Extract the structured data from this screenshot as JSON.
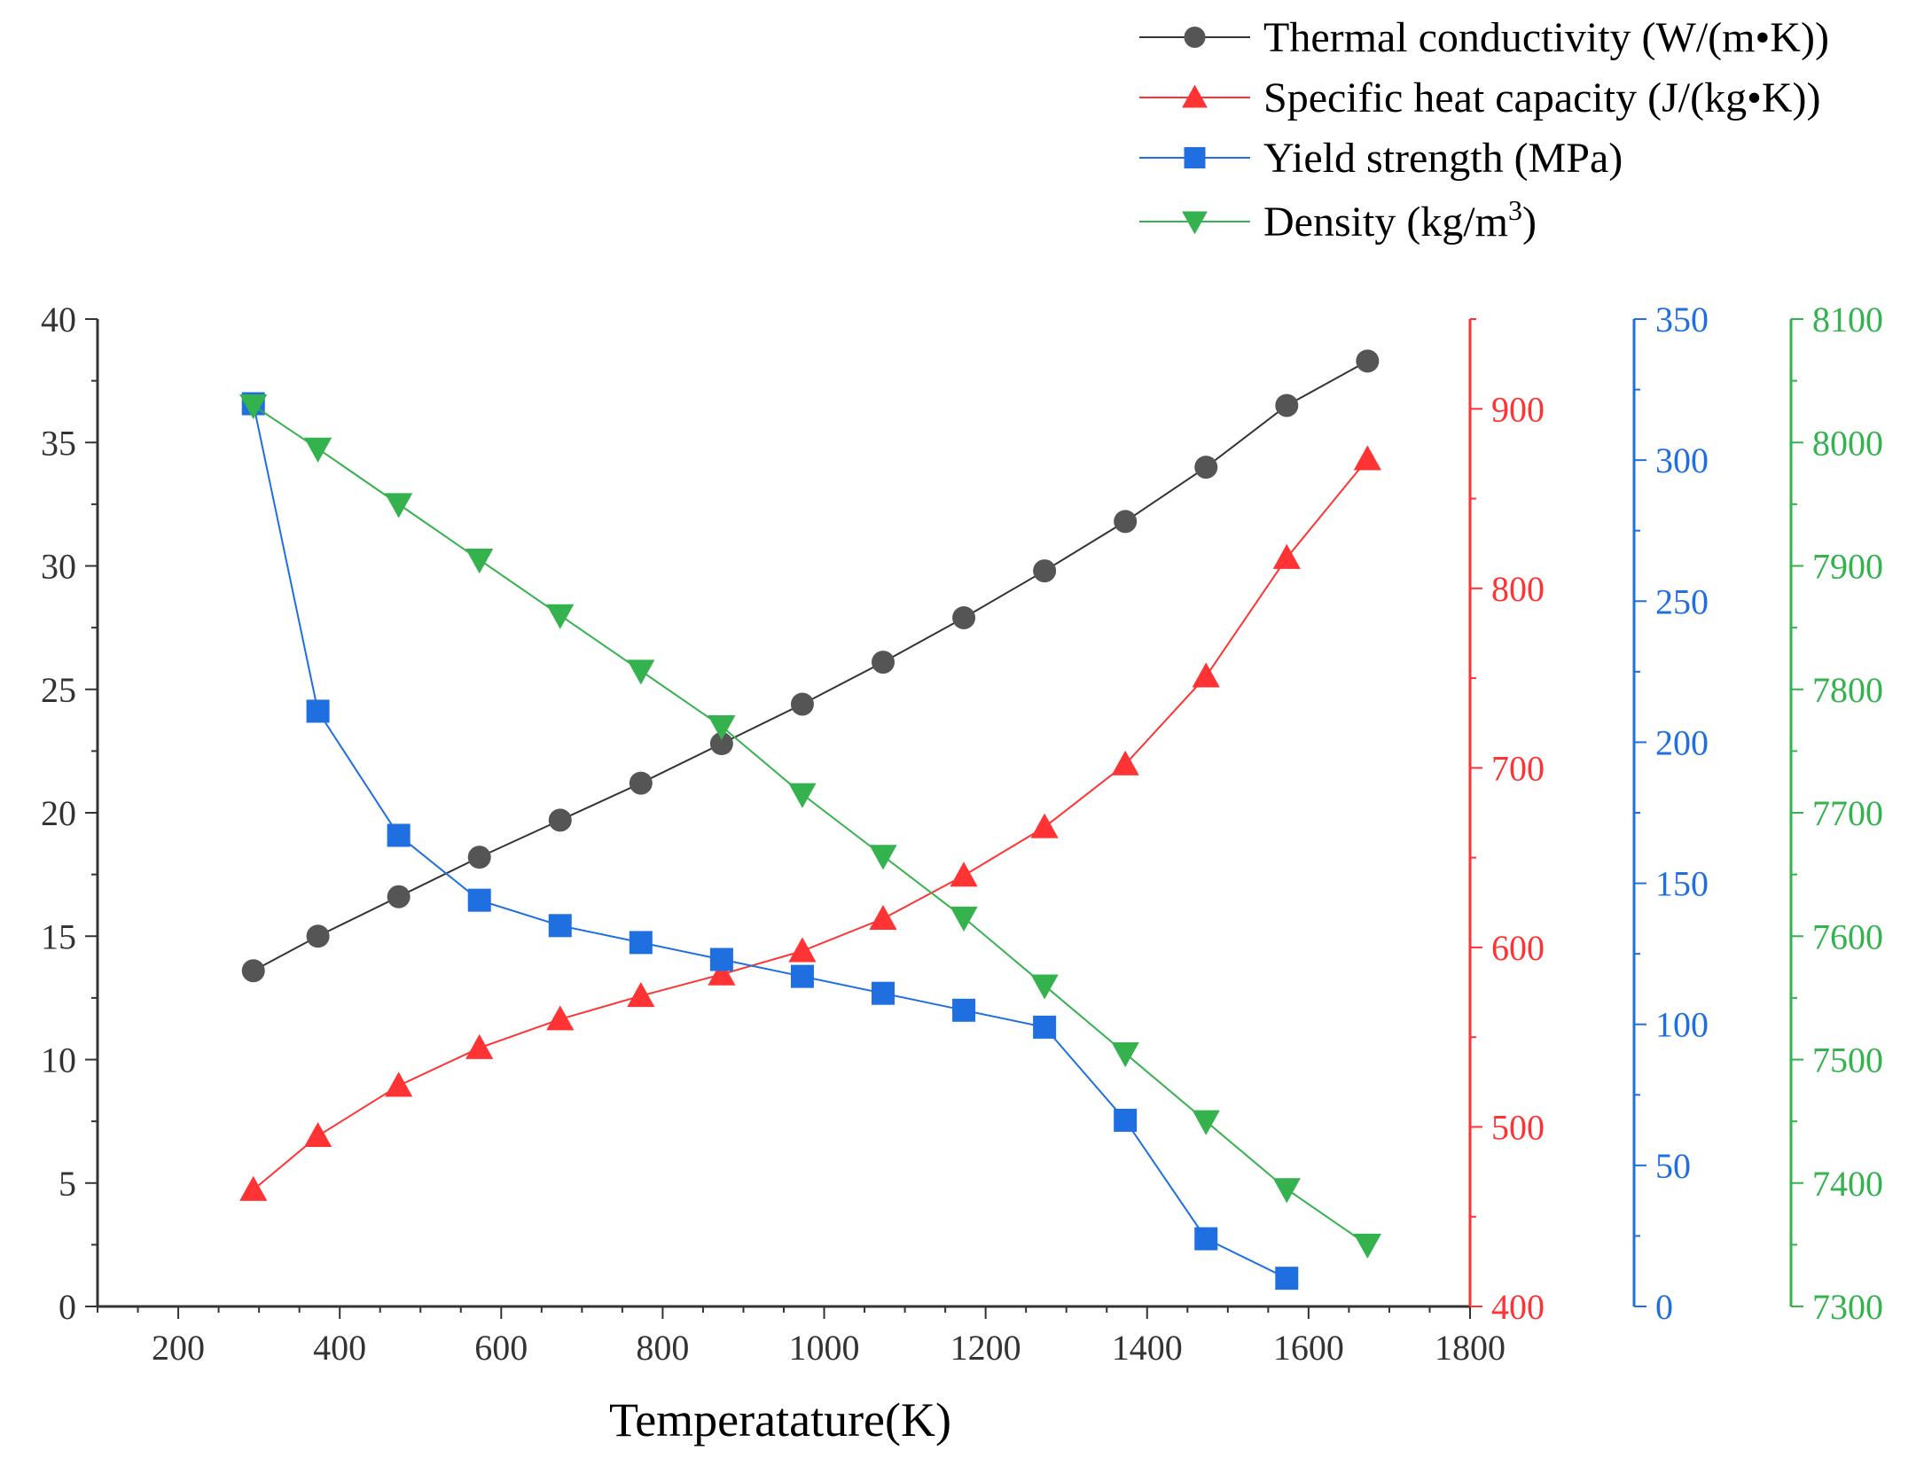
{
  "chart_data": {
    "type": "line",
    "title": "",
    "xlabel": "Temperatature(K)",
    "xlim": [
      100,
      1800
    ],
    "x_ticks": [
      200,
      400,
      600,
      800,
      1000,
      1200,
      1400,
      1600,
      1800
    ],
    "grid": false,
    "legend_position": "top-right",
    "x": [
      293,
      373,
      473,
      573,
      673,
      773,
      873,
      973,
      1073,
      1173,
      1273,
      1373,
      1473,
      1573,
      1673
    ],
    "axes": [
      {
        "id": "y1",
        "side": "left",
        "color": "#333333",
        "ylim": [
          0,
          40
        ],
        "ticks": [
          0,
          5,
          10,
          15,
          20,
          25,
          30,
          35,
          40
        ]
      },
      {
        "id": "y2",
        "side": "right",
        "color": "#ff3333",
        "ylim": [
          400,
          950
        ],
        "ticks": [
          400,
          500,
          600,
          700,
          800,
          900
        ]
      },
      {
        "id": "y3",
        "side": "right",
        "color": "#1f6fe0",
        "ylim": [
          0,
          350
        ],
        "ticks": [
          0,
          50,
          100,
          150,
          200,
          250,
          300,
          350
        ]
      },
      {
        "id": "y4",
        "side": "right",
        "color": "#33b24d",
        "ylim": [
          7300,
          8100
        ],
        "ticks": [
          7300,
          7400,
          7500,
          7600,
          7700,
          7800,
          7900,
          8000,
          8100
        ]
      }
    ],
    "series": [
      {
        "name": "Thermal conductivity (W/(m•K))",
        "axis": "y1",
        "marker": "circle",
        "color": "#555555",
        "line_color": "#333333",
        "x": [
          293,
          373,
          473,
          573,
          673,
          773,
          873,
          973,
          1073,
          1173,
          1273,
          1373,
          1473,
          1573,
          1673
        ],
        "values": [
          13.6,
          15.0,
          16.6,
          18.2,
          19.7,
          21.2,
          22.8,
          24.4,
          26.1,
          27.9,
          29.8,
          31.8,
          34.0,
          36.5,
          38.3
        ]
      },
      {
        "name": "Specific heat capacity (J/(kg•K))",
        "axis": "y2",
        "marker": "triangle-up",
        "color": "#ff3333",
        "line_color": "#ff3333",
        "x": [
          293,
          373,
          473,
          573,
          673,
          773,
          873,
          973,
          1073,
          1173,
          1273,
          1373,
          1473,
          1573,
          1673
        ],
        "values": [
          465,
          495,
          523,
          544,
          560,
          573,
          585,
          598,
          616,
          640,
          667,
          702,
          751,
          817,
          872
        ]
      },
      {
        "name": "Yield strength (MPa)",
        "axis": "y3",
        "marker": "square",
        "color": "#1f6fe0",
        "line_color": "#1f6fe0",
        "x": [
          293,
          373,
          473,
          573,
          673,
          773,
          873,
          973,
          1073,
          1173,
          1273,
          1373,
          1473,
          1573
        ],
        "values": [
          320,
          211,
          167,
          144,
          135,
          129,
          123,
          117,
          111,
          105,
          99,
          66,
          24,
          10
        ]
      },
      {
        "name": "Density (kg/m",
        "name_sup": "3",
        "name_suffix": ")",
        "axis": "y4",
        "marker": "triangle-down",
        "color": "#33b24d",
        "line_color": "#33b24d",
        "x": [
          293,
          373,
          473,
          573,
          673,
          773,
          873,
          973,
          1073,
          1173,
          1273,
          1373,
          1473,
          1573,
          1673
        ],
        "values": [
          8030,
          7995,
          7950,
          7905,
          7860,
          7815,
          7770,
          7715,
          7665,
          7615,
          7560,
          7505,
          7450,
          7395,
          7350
        ]
      }
    ]
  }
}
